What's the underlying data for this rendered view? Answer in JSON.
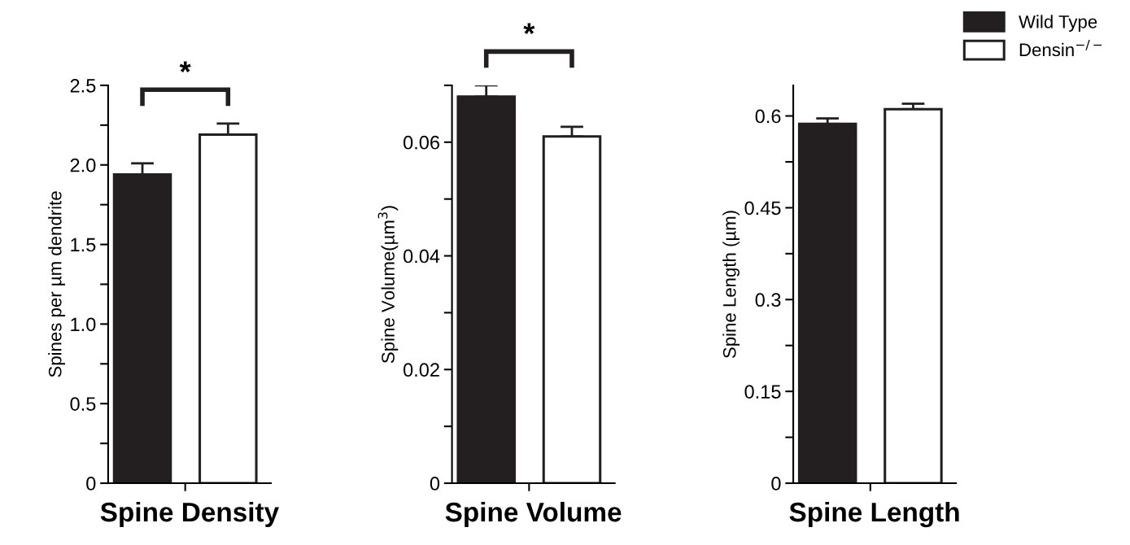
{
  "chart_data": [
    {
      "type": "bar",
      "categories": [
        null
      ],
      "xlabel": "Spine Density",
      "ylabel": "Spines per µm dendrite",
      "ylim": [
        0,
        2.5
      ],
      "yticks": [
        0,
        {
          "value": 0.25,
          "label": null
        },
        0.5,
        {
          "value": 0.75,
          "label": null
        },
        "1.0",
        {
          "value": 1.25,
          "label": null
        },
        1.5,
        {
          "value": 1.75,
          "label": null
        },
        "2.0",
        {
          "value": 2.25,
          "label": null
        },
        2.5
      ],
      "series": [
        {
          "color": "#231f20",
          "values": [
            1.94
          ],
          "errors": [
            0.07
          ]
        },
        {
          "color": "#ffffff",
          "values": [
            2.19
          ],
          "errors": [
            0.07
          ]
        }
      ],
      "annotations": [
        "*"
      ]
    },
    {
      "type": "bar",
      "categories": [
        null
      ],
      "xlabel": "Spine Volume",
      "ylabel": "Spine Volume(µm$^{3}$)",
      "ylim": [
        0,
        0.07
      ],
      "yticks": [
        0,
        {
          "value": 0.01,
          "label": null
        },
        0.02,
        {
          "value": 0.03,
          "label": null
        },
        0.04,
        {
          "value": 0.05,
          "label": null
        },
        0.06,
        {
          "value": 0.07,
          "label": null
        }
      ],
      "series": [
        {
          "color": "#231f20",
          "values": [
            0.068
          ],
          "errors": [
            0.002
          ]
        },
        {
          "color": "#ffffff",
          "values": [
            0.061
          ],
          "errors": [
            0.0017
          ]
        }
      ],
      "annotations": [
        "*"
      ]
    },
    {
      "type": "bar",
      "categories": [
        null
      ],
      "xlabel": "Spine Length",
      "ylabel": "Spine Length (µm)",
      "ylim": [
        0,
        0.65
      ],
      "yticks": [
        0,
        {
          "value": 0.075,
          "label": null
        },
        0.15,
        {
          "value": 0.225,
          "label": null
        },
        0.3,
        {
          "value": 0.375,
          "label": null
        },
        0.45,
        {
          "value": 0.525,
          "label": null
        },
        0.6
      ],
      "series": [
        {
          "name": "Wild Type",
          "color": "#231f20",
          "values": [
            0.587
          ],
          "errors": [
            0.009
          ]
        },
        {
          "name": "Densin$^{−/−}$",
          "color": "#ffffff",
          "values": [
            0.611
          ],
          "errors": [
            0.009
          ]
        }
      ],
      "legend": "top right"
    }
  ]
}
